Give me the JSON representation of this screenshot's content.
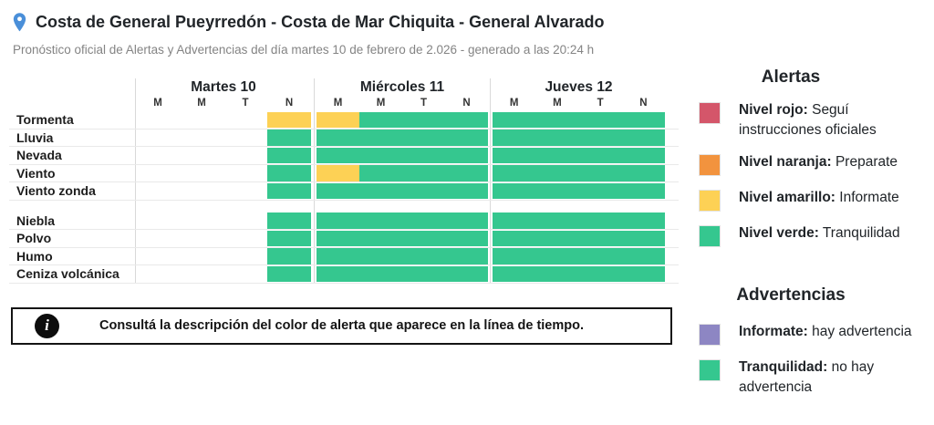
{
  "header": {
    "title": "Costa de General Pueyrredón - Costa de Mar Chiquita - General Alvarado",
    "subtitle": "Pronóstico oficial de Alertas y Advertencias del día martes 10 de febrero de 2.026 - generado a las 20:24 h",
    "pin_color": "#4a8fd9"
  },
  "colors": {
    "green": "#35c78f",
    "yellow": "#fdd155",
    "red": "#d4566a",
    "orange": "#f2933e",
    "purple": "#8d86c3"
  },
  "timeline": {
    "days": [
      {
        "name": "Martes 10",
        "slots": [
          "M",
          "M",
          "T",
          "N"
        ]
      },
      {
        "name": "Miércoles 11",
        "slots": [
          "M",
          "M",
          "T",
          "N"
        ]
      },
      {
        "name": "Jueves 12",
        "slots": [
          "M",
          "M",
          "T",
          "N"
        ]
      }
    ],
    "groups": [
      {
        "rows": [
          {
            "label": "Tormenta",
            "cells": [
              [
                null,
                null,
                null,
                "yellow"
              ],
              [
                "yellow",
                "green",
                "green",
                "green"
              ],
              [
                "green",
                "green",
                "green",
                "green"
              ]
            ]
          },
          {
            "label": "Lluvia",
            "cells": [
              [
                null,
                null,
                null,
                "green"
              ],
              [
                "green",
                "green",
                "green",
                "green"
              ],
              [
                "green",
                "green",
                "green",
                "green"
              ]
            ]
          },
          {
            "label": "Nevada",
            "cells": [
              [
                null,
                null,
                null,
                "green"
              ],
              [
                "green",
                "green",
                "green",
                "green"
              ],
              [
                "green",
                "green",
                "green",
                "green"
              ]
            ]
          },
          {
            "label": "Viento",
            "cells": [
              [
                null,
                null,
                null,
                "green"
              ],
              [
                "yellow",
                "green",
                "green",
                "green"
              ],
              [
                "green",
                "green",
                "green",
                "green"
              ]
            ]
          },
          {
            "label": "Viento zonda",
            "cells": [
              [
                null,
                null,
                null,
                "green"
              ],
              [
                "green",
                "green",
                "green",
                "green"
              ],
              [
                "green",
                "green",
                "green",
                "green"
              ]
            ]
          }
        ]
      },
      {
        "rows": [
          {
            "label": "Niebla",
            "cells": [
              [
                null,
                null,
                null,
                "green"
              ],
              [
                "green",
                "green",
                "green",
                "green"
              ],
              [
                "green",
                "green",
                "green",
                "green"
              ]
            ]
          },
          {
            "label": "Polvo",
            "cells": [
              [
                null,
                null,
                null,
                "green"
              ],
              [
                "green",
                "green",
                "green",
                "green"
              ],
              [
                "green",
                "green",
                "green",
                "green"
              ]
            ]
          },
          {
            "label": "Humo",
            "cells": [
              [
                null,
                null,
                null,
                "green"
              ],
              [
                "green",
                "green",
                "green",
                "green"
              ],
              [
                "green",
                "green",
                "green",
                "green"
              ]
            ]
          },
          {
            "label": "Ceniza volcánica",
            "cells": [
              [
                null,
                null,
                null,
                "green"
              ],
              [
                "green",
                "green",
                "green",
                "green"
              ],
              [
                "green",
                "green",
                "green",
                "green"
              ]
            ]
          }
        ]
      }
    ]
  },
  "info_box": {
    "text": "Consultá la descripción del color de alerta que aparece en la línea de tiempo."
  },
  "legend": {
    "sections": [
      {
        "title": "Alertas",
        "items": [
          {
            "color_key": "red",
            "bold": "Nivel rojo:",
            "text": " Seguí instrucciones oficiales"
          },
          {
            "color_key": "orange",
            "bold": "Nivel naranja:",
            "text": " Preparate"
          },
          {
            "color_key": "yellow",
            "bold": "Nivel amarillo:",
            "text": " Informate"
          },
          {
            "color_key": "green",
            "bold": "Nivel verde:",
            "text": " Tranquilidad"
          }
        ]
      },
      {
        "title": "Advertencias",
        "items": [
          {
            "color_key": "purple",
            "bold": "Informate:",
            "text": " hay advertencia"
          },
          {
            "color_key": "green",
            "bold": "Tranquilidad:",
            "text": " no hay advertencia"
          }
        ]
      }
    ]
  }
}
